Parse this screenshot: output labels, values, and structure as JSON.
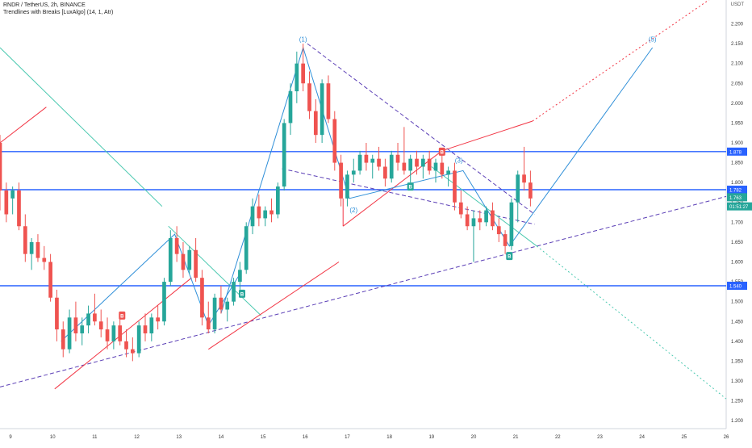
{
  "header": {
    "symbol_line": "RNDR / TetherUS, 2h, BINANCE",
    "indicator_line": "Trendlines with Breaks [LuxAlgo] (14, 1, Atr)"
  },
  "chart_data": {
    "type": "candlestick",
    "title": "RNDR / TetherUS, 2h, BINANCE",
    "y_unit": "USDT",
    "ylim": [
      1.18,
      2.26
    ],
    "y_ticks": [
      "1.200",
      "1.250",
      "1.300",
      "1.350",
      "1.400",
      "1.450",
      "1.500",
      "1.550",
      "1.600",
      "1.650",
      "1.700",
      "1.750",
      "1.800",
      "1.850",
      "1.900",
      "1.950",
      "2.000",
      "2.050",
      "2.100",
      "2.150",
      "2.200"
    ],
    "x_ticks": [
      "9",
      "10",
      "11",
      "12",
      "13",
      "14",
      "15",
      "16",
      "17",
      "18",
      "19",
      "20",
      "21",
      "22",
      "23",
      "24",
      "25",
      "26"
    ],
    "xlim": [
      8.75,
      26.0
    ],
    "colors": {
      "up": "#26a69a",
      "down": "#ef5350",
      "level": "#2962ff",
      "trend": "#5b3fb6",
      "red_line": "#f23645",
      "teal_line": "#4cc9b0",
      "wave": "#2f8fd8"
    },
    "candles": [
      [
        8.75,
        1.9,
        1.92,
        1.73,
        1.78
      ],
      [
        8.9,
        1.78,
        1.8,
        1.7,
        1.72
      ],
      [
        9.05,
        1.76,
        1.79,
        1.72,
        1.78
      ],
      [
        9.2,
        1.78,
        1.8,
        1.68,
        1.69
      ],
      [
        9.35,
        1.69,
        1.72,
        1.6,
        1.62
      ],
      [
        9.5,
        1.62,
        1.66,
        1.58,
        1.65
      ],
      [
        9.65,
        1.65,
        1.67,
        1.6,
        1.61
      ],
      [
        9.8,
        1.61,
        1.64,
        1.58,
        1.6
      ],
      [
        9.95,
        1.6,
        1.62,
        1.5,
        1.51
      ],
      [
        10.1,
        1.51,
        1.53,
        1.4,
        1.43
      ],
      [
        10.25,
        1.43,
        1.45,
        1.36,
        1.38
      ],
      [
        10.4,
        1.38,
        1.48,
        1.37,
        1.46
      ],
      [
        10.55,
        1.46,
        1.5,
        1.4,
        1.42
      ],
      [
        10.7,
        1.42,
        1.46,
        1.39,
        1.44
      ],
      [
        10.85,
        1.44,
        1.49,
        1.42,
        1.47
      ],
      [
        11.0,
        1.47,
        1.52,
        1.44,
        1.45
      ],
      [
        11.15,
        1.45,
        1.48,
        1.41,
        1.43
      ],
      [
        11.3,
        1.43,
        1.46,
        1.38,
        1.4
      ],
      [
        11.45,
        1.4,
        1.45,
        1.38,
        1.44
      ],
      [
        11.6,
        1.44,
        1.47,
        1.39,
        1.4
      ],
      [
        11.75,
        1.4,
        1.43,
        1.36,
        1.38
      ],
      [
        11.9,
        1.38,
        1.41,
        1.35,
        1.37
      ],
      [
        12.05,
        1.37,
        1.45,
        1.36,
        1.44
      ],
      [
        12.2,
        1.44,
        1.47,
        1.4,
        1.42
      ],
      [
        12.35,
        1.42,
        1.47,
        1.4,
        1.46
      ],
      [
        12.5,
        1.46,
        1.49,
        1.43,
        1.45
      ],
      [
        12.65,
        1.45,
        1.56,
        1.44,
        1.55
      ],
      [
        12.8,
        1.55,
        1.68,
        1.54,
        1.66
      ],
      [
        12.95,
        1.66,
        1.69,
        1.6,
        1.62
      ],
      [
        13.1,
        1.62,
        1.65,
        1.56,
        1.58
      ],
      [
        13.25,
        1.58,
        1.64,
        1.57,
        1.63
      ],
      [
        13.4,
        1.63,
        1.66,
        1.55,
        1.56
      ],
      [
        13.55,
        1.56,
        1.58,
        1.44,
        1.46
      ],
      [
        13.7,
        1.46,
        1.5,
        1.42,
        1.43
      ],
      [
        13.85,
        1.43,
        1.52,
        1.42,
        1.51
      ],
      [
        14.0,
        1.51,
        1.54,
        1.47,
        1.48
      ],
      [
        14.15,
        1.48,
        1.51,
        1.45,
        1.5
      ],
      [
        14.3,
        1.5,
        1.56,
        1.49,
        1.55
      ],
      [
        14.45,
        1.55,
        1.6,
        1.53,
        1.58
      ],
      [
        14.6,
        1.58,
        1.7,
        1.57,
        1.69
      ],
      [
        14.75,
        1.69,
        1.76,
        1.67,
        1.74
      ],
      [
        14.9,
        1.74,
        1.77,
        1.69,
        1.71
      ],
      [
        15.05,
        1.71,
        1.74,
        1.69,
        1.73
      ],
      [
        15.2,
        1.73,
        1.76,
        1.7,
        1.72
      ],
      [
        15.35,
        1.72,
        1.8,
        1.71,
        1.79
      ],
      [
        15.5,
        1.79,
        1.96,
        1.78,
        1.95
      ],
      [
        15.65,
        1.95,
        2.05,
        1.92,
        2.03
      ],
      [
        15.8,
        2.03,
        2.13,
        2.0,
        2.1
      ],
      [
        15.95,
        2.1,
        2.15,
        2.03,
        2.05
      ],
      [
        16.1,
        2.05,
        2.08,
        1.96,
        1.98
      ],
      [
        16.25,
        1.98,
        2.01,
        1.9,
        1.92
      ],
      [
        16.4,
        1.92,
        2.06,
        1.9,
        2.05
      ],
      [
        16.55,
        2.05,
        2.07,
        1.95,
        1.96
      ],
      [
        16.7,
        1.96,
        1.98,
        1.83,
        1.85
      ],
      [
        16.85,
        1.85,
        1.87,
        1.74,
        1.76
      ],
      [
        17.0,
        1.76,
        1.83,
        1.74,
        1.82
      ],
      [
        17.15,
        1.82,
        1.86,
        1.8,
        1.83
      ],
      [
        17.3,
        1.83,
        1.88,
        1.82,
        1.87
      ],
      [
        17.45,
        1.87,
        1.9,
        1.83,
        1.85
      ],
      [
        17.6,
        1.85,
        1.87,
        1.81,
        1.86
      ],
      [
        17.75,
        1.86,
        1.89,
        1.83,
        1.84
      ],
      [
        17.9,
        1.84,
        1.86,
        1.79,
        1.81
      ],
      [
        18.05,
        1.81,
        1.88,
        1.8,
        1.87
      ],
      [
        18.2,
        1.87,
        1.9,
        1.83,
        1.85
      ],
      [
        18.35,
        1.85,
        1.94,
        1.82,
        1.83
      ],
      [
        18.5,
        1.83,
        1.87,
        1.8,
        1.86
      ],
      [
        18.65,
        1.86,
        1.88,
        1.82,
        1.84
      ],
      [
        18.8,
        1.84,
        1.87,
        1.81,
        1.86
      ],
      [
        18.95,
        1.86,
        1.88,
        1.82,
        1.83
      ],
      [
        19.1,
        1.83,
        1.86,
        1.8,
        1.85
      ],
      [
        19.25,
        1.85,
        1.88,
        1.81,
        1.82
      ],
      [
        19.4,
        1.82,
        1.84,
        1.79,
        1.83
      ],
      [
        19.55,
        1.83,
        1.85,
        1.73,
        1.75
      ],
      [
        19.7,
        1.75,
        1.78,
        1.71,
        1.72
      ],
      [
        19.85,
        1.72,
        1.74,
        1.68,
        1.69
      ],
      [
        20.0,
        1.69,
        1.73,
        1.6,
        1.71
      ],
      [
        20.15,
        1.71,
        1.73,
        1.68,
        1.7
      ],
      [
        20.3,
        1.7,
        1.74,
        1.69,
        1.73
      ],
      [
        20.45,
        1.73,
        1.75,
        1.68,
        1.69
      ],
      [
        20.6,
        1.69,
        1.71,
        1.65,
        1.67
      ],
      [
        20.75,
        1.67,
        1.68,
        1.62,
        1.64
      ],
      [
        20.9,
        1.64,
        1.76,
        1.63,
        1.75
      ],
      [
        21.05,
        1.75,
        1.83,
        1.7,
        1.82
      ],
      [
        21.2,
        1.82,
        1.89,
        1.78,
        1.8
      ],
      [
        21.35,
        1.8,
        1.83,
        1.74,
        1.76
      ]
    ],
    "lines": [
      {
        "role": "level",
        "points": [
          [
            8.75,
            1.878
          ],
          [
            26.0,
            1.878
          ]
        ],
        "style": "solid"
      },
      {
        "role": "level",
        "points": [
          [
            8.75,
            1.782
          ],
          [
            26.0,
            1.782
          ]
        ],
        "style": "solid"
      },
      {
        "role": "level",
        "points": [
          [
            8.75,
            1.54
          ],
          [
            26.0,
            1.54
          ]
        ],
        "style": "solid"
      },
      {
        "role": "trend",
        "points": [
          [
            8.75,
            1.285
          ],
          [
            26.0,
            1.765
          ]
        ],
        "style": "dashed"
      },
      {
        "role": "trend",
        "points": [
          [
            15.45,
            1.835
          ],
          [
            21.45,
            1.695
          ]
        ],
        "style": "dashed"
      },
      {
        "role": "trend",
        "points": [
          [
            16.05,
            2.15
          ],
          [
            21.45,
            1.72
          ]
        ],
        "style": "dashed"
      },
      {
        "role": "teal_line",
        "points": [
          [
            8.75,
            2.14
          ],
          [
            12.6,
            1.74
          ]
        ],
        "style": "solid"
      },
      {
        "role": "teal_line",
        "points": [
          [
            12.75,
            1.69
          ],
          [
            14.95,
            1.465
          ]
        ],
        "style": "solid"
      },
      {
        "role": "red_line",
        "points": [
          [
            8.75,
            1.9
          ],
          [
            9.85,
            1.99
          ]
        ],
        "style": "solid"
      },
      {
        "role": "red_line",
        "points": [
          [
            10.05,
            1.28
          ],
          [
            13.3,
            1.56
          ]
        ],
        "style": "solid"
      },
      {
        "role": "red_line",
        "points": [
          [
            13.7,
            1.38
          ],
          [
            16.8,
            1.6
          ]
        ],
        "style": "solid"
      },
      {
        "role": "red_line",
        "points": [
          [
            16.9,
            1.69
          ],
          [
            19.25,
            1.88
          ]
        ],
        "style": "solid"
      },
      {
        "role": "red_line",
        "points": [
          [
            19.25,
            1.88
          ],
          [
            21.4,
            1.955
          ]
        ],
        "style": "solid"
      },
      {
        "role": "red_line",
        "points": [
          [
            21.4,
            1.955
          ],
          [
            26.0,
            2.29
          ]
        ],
        "style": "dotted"
      },
      {
        "role": "teal_line",
        "points": [
          [
            19.0,
            1.84
          ],
          [
            21.5,
            1.64
          ]
        ],
        "style": "solid"
      },
      {
        "role": "teal_line",
        "points": [
          [
            21.5,
            1.64
          ],
          [
            26.0,
            1.255
          ]
        ],
        "style": "dotted"
      },
      {
        "role": "wave",
        "points": [
          [
            14.0,
            1.47
          ],
          [
            15.95,
            2.14
          ],
          [
            17.05,
            1.76
          ],
          [
            19.75,
            1.83
          ],
          [
            20.85,
            1.64
          ],
          [
            24.25,
            2.14
          ]
        ],
        "style": "solid"
      },
      {
        "role": "wave",
        "points": [
          [
            10.2,
            1.4
          ],
          [
            12.9,
            1.67
          ],
          [
            13.7,
            1.44
          ],
          [
            14.45,
            1.57
          ]
        ],
        "style": "solid"
      },
      {
        "role": "red_line",
        "points": [
          [
            16.9,
            1.69
          ],
          [
            16.9,
            1.76
          ]
        ],
        "style": "solid"
      }
    ],
    "level_labels": [
      {
        "value": 1.878,
        "text": "1.878",
        "color": "#2962ff"
      },
      {
        "value": 1.782,
        "text": "1.782",
        "color": "#2962ff"
      },
      {
        "value": 1.763,
        "text": "1.763",
        "color": "#26a69a"
      },
      {
        "value": 1.74,
        "text": "01:51:27",
        "color": "#26a69a"
      },
      {
        "value": 1.54,
        "text": "1.540",
        "color": "#2962ff"
      }
    ],
    "wave_labels": [
      {
        "x": 15.95,
        "y": 2.155,
        "text": "(1)"
      },
      {
        "x": 17.15,
        "y": 1.725,
        "text": "(2)"
      },
      {
        "x": 19.65,
        "y": 1.85,
        "text": "(3)"
      },
      {
        "x": 24.25,
        "y": 2.155,
        "text": "(5)"
      }
    ],
    "markers": [
      {
        "x": 11.65,
        "y": 1.465,
        "text": "B",
        "color": "#ef5350"
      },
      {
        "x": 14.5,
        "y": 1.52,
        "text": "B",
        "color": "#26a69a"
      },
      {
        "x": 18.5,
        "y": 1.79,
        "text": "B",
        "color": "#26a69a"
      },
      {
        "x": 19.25,
        "y": 1.878,
        "text": "B",
        "color": "#ef5350"
      },
      {
        "x": 20.85,
        "y": 1.615,
        "text": "B",
        "color": "#26a69a"
      }
    ]
  }
}
